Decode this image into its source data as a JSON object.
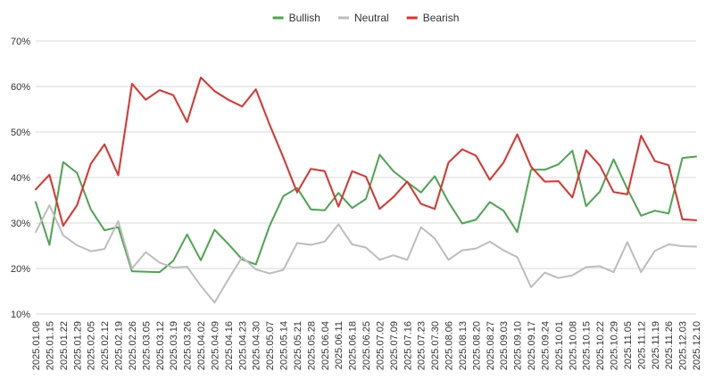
{
  "chart_data": {
    "type": "line",
    "title": "",
    "xlabel": "",
    "ylabel": "",
    "ylim": [
      10,
      70
    ],
    "y_ticks": [
      10,
      20,
      30,
      40,
      50,
      60,
      70
    ],
    "y_tick_format": "{v}%",
    "grid": true,
    "legend_position": "top-center",
    "x": [
      "2025.01.08",
      "2025.01.15",
      "2025.01.22",
      "2025.01.29",
      "2025.02.05",
      "2025.02.12",
      "2025.02.19",
      "2025.02.26",
      "2025.03.05",
      "2025.03.12",
      "2025.03.19",
      "2025.03.26",
      "2025.04.02",
      "2025.04.09",
      "2025.04.16",
      "2025.04.23",
      "2025.04.30",
      "2025.05.07",
      "2025.05.14",
      "2025.05.21",
      "2025.05.28",
      "2025.06.04",
      "2025.06.11",
      "2025.06.18",
      "2025.06.25",
      "2025.07.02",
      "2025.07.09",
      "2025.07.16",
      "2025.07.23",
      "2025.07.30",
      "2025.08.06",
      "2025.08.13",
      "2025.08.20",
      "2025.08.27",
      "2025.09.03",
      "2025.09.10",
      "2025.09.17",
      "2025.09.24",
      "2025.10.01",
      "2025.10.08",
      "2025.10.15",
      "2025.10.22",
      "2025.10.29",
      "2025.11.05",
      "2025.11.12",
      "2025.11.19",
      "2025.11.26",
      "2025.12.03",
      "2025.12.10"
    ],
    "x_tick_labels": [
      "2025.01.08",
      "2025.01.15",
      "2025.01.22",
      "2025.01.29",
      "2025.02.05",
      "2025.02.12",
      "2025.02.19",
      "2025.02.26",
      "2025.03.05",
      "2025.03.12",
      "2025.03.19",
      "2025.03.26",
      "2025.04.02",
      "2025.04.09",
      "2025.04.16",
      "2025.04.23",
      "2025.04.30",
      "2025.05.07",
      "2025.05.14",
      "2025.05.21",
      "2025.05.28",
      "2025.06.04",
      "2025.06.11",
      "2025.06.18",
      "2025.06.25",
      "2025.07.02",
      "2025.07.09",
      "2025.07.16",
      "2025.07.23",
      "2025.07.30",
      "2025.08.06",
      "2025.08.13",
      "2025.08.20",
      "2025.08.27",
      "2025.09.03",
      "2025.09.10",
      "2025.09.17",
      "2025.09.24",
      "2025.10.01",
      "2025.10.08",
      "2025.10.15",
      "2025.10.22",
      "2025.10.29",
      "2025.11.05",
      "2025.11.12",
      "2025.11.19",
      "2025.11.26",
      "2025.12.03",
      "2025.12.10"
    ],
    "series": [
      {
        "name": "Bullish",
        "color": "#4aa64f",
        "values": [
          34.6,
          25.2,
          43.4,
          41.0,
          33.0,
          28.4,
          29.1,
          19.4,
          19.3,
          19.2,
          21.7,
          27.5,
          21.8,
          28.5,
          25.4,
          22.0,
          20.9,
          29.4,
          35.9,
          37.7,
          33.0,
          32.8,
          36.6,
          33.3,
          35.3,
          45.0,
          41.4,
          39.0,
          36.7,
          40.3,
          34.6,
          29.9,
          30.7,
          34.6,
          32.7,
          28.0,
          41.7,
          41.7,
          42.9,
          45.9,
          33.7,
          36.9,
          44.0,
          37.5,
          31.6,
          32.7,
          32.1,
          44.3,
          44.6
        ]
      },
      {
        "name": "Neutral",
        "color": "#bdbdbd",
        "values": [
          28.0,
          33.9,
          27.3,
          25.1,
          23.8,
          24.3,
          30.4,
          20.0,
          23.6,
          21.3,
          20.2,
          20.4,
          16.2,
          12.5,
          17.6,
          22.5,
          19.8,
          18.9,
          19.7,
          25.6,
          25.2,
          25.9,
          29.7,
          25.3,
          24.6,
          21.9,
          22.9,
          21.9,
          29.1,
          26.6,
          21.9,
          24.0,
          24.4,
          25.9,
          24.0,
          22.5,
          15.9,
          19.1,
          17.9,
          18.5,
          20.3,
          20.5,
          19.2,
          25.8,
          19.2,
          23.9,
          25.3,
          24.9,
          24.8
        ]
      },
      {
        "name": "Bearish",
        "color": "#e2302b",
        "values": [
          37.4,
          40.6,
          29.4,
          33.9,
          43.0,
          47.3,
          40.5,
          60.6,
          57.1,
          59.2,
          58.1,
          52.2,
          62.0,
          59.0,
          57.1,
          55.6,
          59.4,
          51.6,
          44.4,
          36.7,
          41.9,
          41.4,
          33.6,
          41.4,
          40.2,
          33.1,
          35.7,
          39.1,
          34.2,
          33.1,
          43.3,
          46.2,
          44.8,
          39.5,
          43.3,
          49.5,
          42.4,
          39.1,
          39.2,
          35.6,
          46.0,
          42.6,
          36.8,
          36.3,
          49.2,
          43.6,
          42.7,
          30.8,
          30.6
        ]
      }
    ]
  }
}
